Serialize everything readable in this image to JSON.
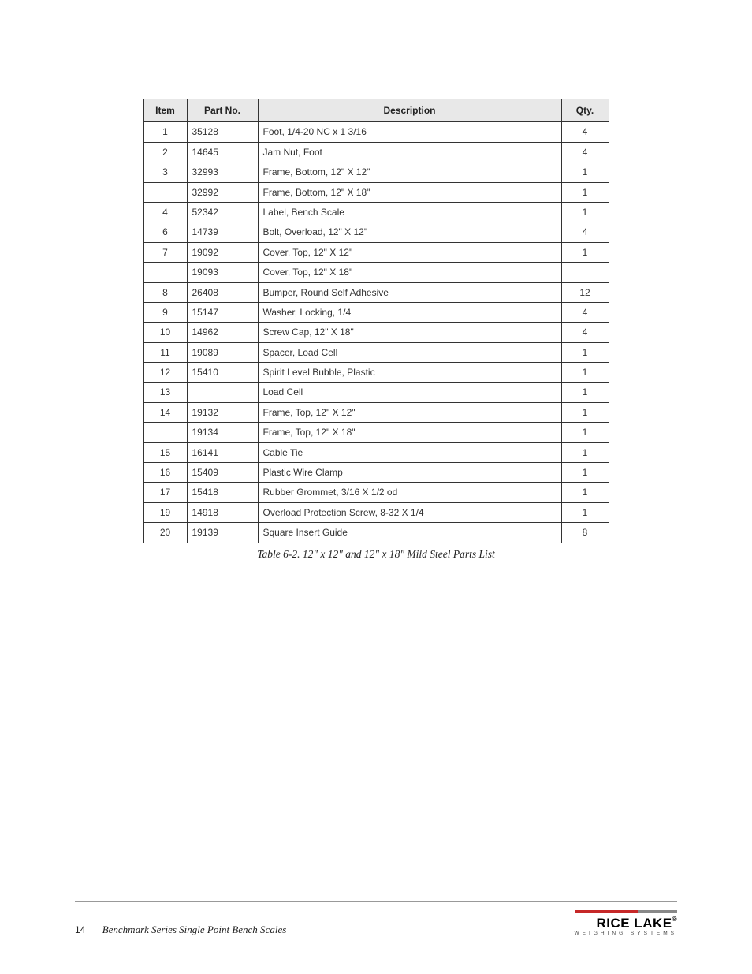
{
  "table": {
    "headers": {
      "item": "Item",
      "part": "Part No.",
      "desc": "Description",
      "qty": "Qty."
    },
    "rows": [
      {
        "item": "1",
        "part": "35128",
        "desc": "Foot, 1/4-20  NC x 1 3/16",
        "qty": "4"
      },
      {
        "item": "2",
        "part": "14645",
        "desc": "Jam Nut, Foot",
        "qty": "4"
      },
      {
        "item": "3",
        "part": "32993",
        "desc": "Frame, Bottom, 12\" X 12\"",
        "qty": "1"
      },
      {
        "item": "",
        "part": "32992",
        "desc": "Frame, Bottom, 12\" X 18\"",
        "qty": "1"
      },
      {
        "item": "4",
        "part": "52342",
        "desc": "Label, Bench Scale",
        "qty": "1"
      },
      {
        "item": "6",
        "part": "14739",
        "desc": "Bolt, Overload, 12\" X 12\"",
        "qty": "4"
      },
      {
        "item": "7",
        "part": "19092",
        "desc": "Cover, Top, 12\" X 12\"",
        "qty": "1"
      },
      {
        "item": "",
        "part": "19093",
        "desc": "Cover, Top, 12\" X 18\"",
        "qty": ""
      },
      {
        "item": "8",
        "part": "26408",
        "desc": "Bumper, Round Self Adhesive",
        "qty": "12"
      },
      {
        "item": "9",
        "part": "15147",
        "desc": "Washer, Locking, 1/4",
        "qty": "4"
      },
      {
        "item": "10",
        "part": "14962",
        "desc": "Screw Cap, 12\" X 18\"",
        "qty": "4"
      },
      {
        "item": "11",
        "part": "19089",
        "desc": "Spacer, Load Cell",
        "qty": "1"
      },
      {
        "item": "12",
        "part": "15410",
        "desc": "Spirit Level Bubble, Plastic",
        "qty": "1"
      },
      {
        "item": "13",
        "part": "",
        "desc": "Load Cell",
        "qty": "1"
      },
      {
        "item": "14",
        "part": "19132",
        "desc": "Frame, Top, 12\" X 12\"",
        "qty": "1"
      },
      {
        "item": "",
        "part": "19134",
        "desc": "Frame, Top, 12\" X 18\"",
        "qty": "1"
      },
      {
        "item": "15",
        "part": "16141",
        "desc": "Cable Tie",
        "qty": "1"
      },
      {
        "item": "16",
        "part": "15409",
        "desc": "Plastic Wire Clamp",
        "qty": "1"
      },
      {
        "item": "17",
        "part": "15418",
        "desc": "Rubber Grommet, 3/16 X 1/2  od",
        "qty": "1"
      },
      {
        "item": "19",
        "part": "14918",
        "desc": "Overload Protection Screw, 8-32 X 1/4",
        "qty": "1"
      },
      {
        "item": "20",
        "part": "19139",
        "desc": "Square Insert Guide",
        "qty": "8"
      }
    ],
    "caption": "Table 6-2. 12\" x 12\" and 12\" x 18\" Mild Steel Parts List"
  },
  "footer": {
    "page_number": "14",
    "doc_title": "Benchmark Series Single Point Bench Scales",
    "logo_name": "RICE LAKE",
    "logo_sub": "WEIGHING SYSTEMS"
  }
}
